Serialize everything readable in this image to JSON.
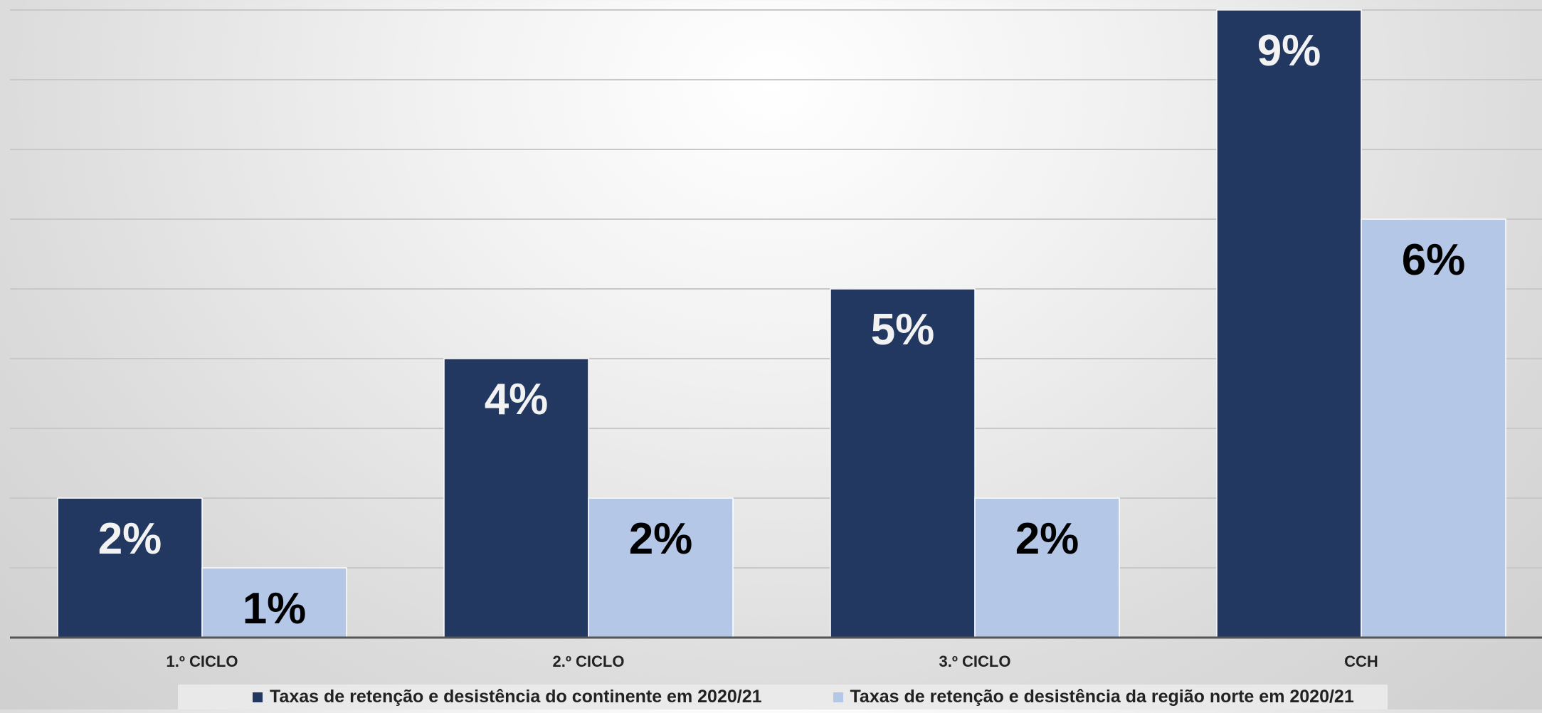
{
  "chart_data": {
    "type": "bar",
    "categories": [
      "1.º CICLO",
      "2.º CICLO",
      "3.º CICLO",
      "CCH"
    ],
    "series": [
      {
        "name": "Taxas de retenção e desistência do continente em 2020/21",
        "values": [
          2,
          4,
          5,
          9
        ],
        "labels": [
          "2%",
          "4%",
          "5%",
          "9%"
        ],
        "color": "#223861",
        "label_color": "#f2f2f2"
      },
      {
        "name": "Taxas de retenção e desistência da região norte em 2020/21",
        "values": [
          1,
          2,
          2,
          6
        ],
        "labels": [
          "1%",
          "2%",
          "2%",
          "6%"
        ],
        "color": "#b4c7e7",
        "label_color": "#000000"
      }
    ],
    "ylim": [
      0,
      9
    ],
    "grid": true,
    "legend_position": "bottom",
    "colors": {
      "gridline": "#c8c8c8",
      "axis": "#555555"
    }
  }
}
